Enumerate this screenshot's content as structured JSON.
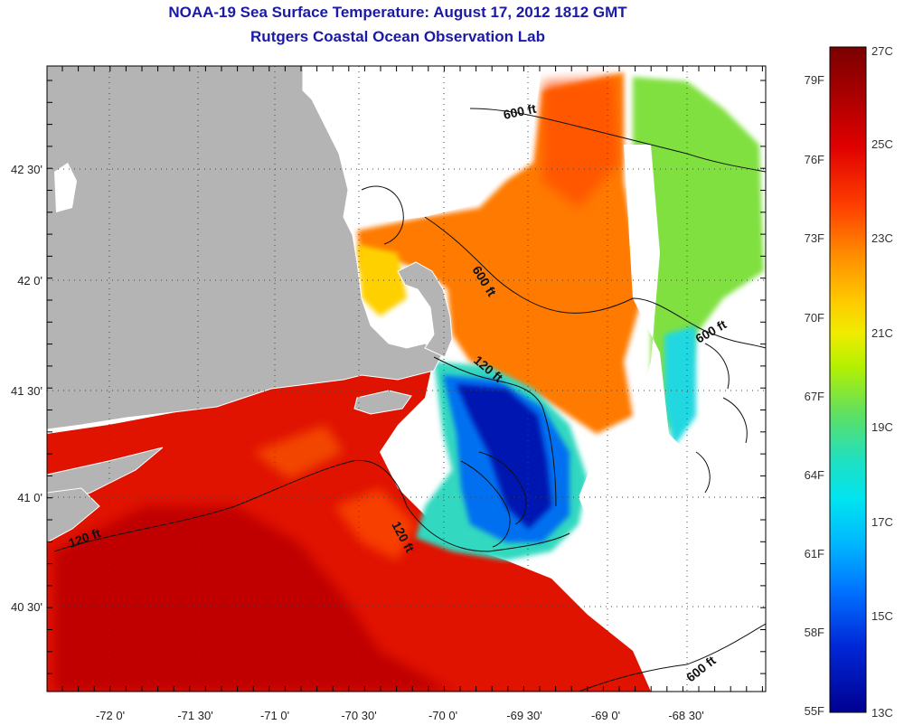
{
  "header": {
    "title": "NOAA-19 Sea Surface Temperature:  August 17, 2012 1812 GMT",
    "subtitle": "Rutgers Coastal Ocean Observation Lab"
  },
  "axes": {
    "longitude_labels": [
      "-72 0'",
      "-71 30'",
      "-71 0'",
      "-70 30'",
      "-70 0'",
      "-69 30'",
      "-69 0'",
      "-68 30'"
    ],
    "latitude_labels": [
      "42 30'",
      "42 0'",
      "41 30'",
      "41 0'",
      "40 30'"
    ]
  },
  "colorbar": {
    "fahrenheit_labels": [
      "79F",
      "76F",
      "73F",
      "70F",
      "67F",
      "64F",
      "61F",
      "58F",
      "55F"
    ],
    "celsius_labels": [
      "27C",
      "25C",
      "23C",
      "21C",
      "19C",
      "17C",
      "15C",
      "13C"
    ],
    "colors": [
      "#7a0000",
      "#c00000",
      "#ff2a00",
      "#ff8a00",
      "#ffd400",
      "#c8f000",
      "#60e060",
      "#20e0c0",
      "#00c8ff",
      "#0070ff",
      "#0020d0",
      "#000090"
    ]
  },
  "contours": {
    "labels": [
      "600 ft",
      "600 ft",
      "600 ft",
      "600 ft",
      "120 ft",
      "120 ft",
      "120 ft"
    ]
  },
  "map_colors": {
    "land": "#b4b4b4",
    "no_data": "#ffffff",
    "warm": "#e01500",
    "cold": "#0010b0"
  }
}
